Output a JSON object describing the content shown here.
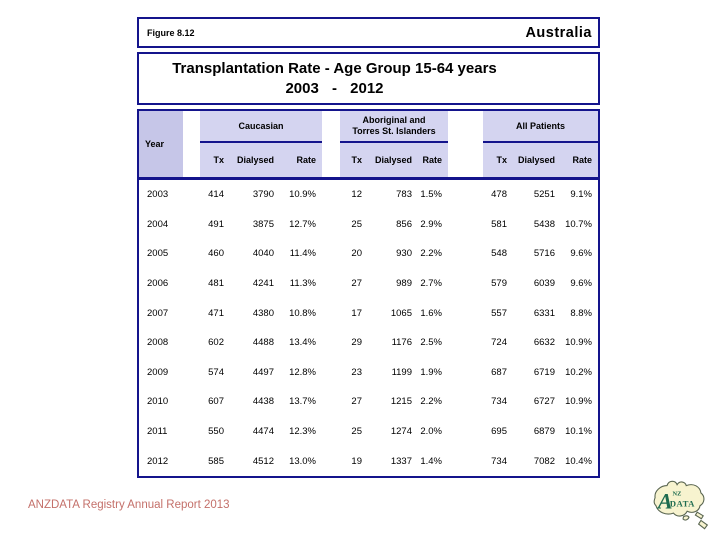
{
  "figure_bar": {
    "figure_label": "Figure 8.12",
    "country": "Australia"
  },
  "title": {
    "line1": "Transplantation Rate - Age Group 15-64 years",
    "line2": "2003 - 2012"
  },
  "table": {
    "year_header": "Year",
    "groups": [
      {
        "label": "Caucasian"
      },
      {
        "label": "Aboriginal and\nTorres St. Islanders"
      },
      {
        "label": "All Patients"
      }
    ],
    "sub_headers": [
      "Tx",
      "Dialysed",
      "Rate"
    ],
    "rows": [
      [
        "2003",
        "414",
        "3790",
        "10.9%",
        "12",
        "783",
        "1.5%",
        "478",
        "5251",
        "9.1%"
      ],
      [
        "2004",
        "491",
        "3875",
        "12.7%",
        "25",
        "856",
        "2.9%",
        "581",
        "5438",
        "10.7%"
      ],
      [
        "2005",
        "460",
        "4040",
        "11.4%",
        "20",
        "930",
        "2.2%",
        "548",
        "5716",
        "9.6%"
      ],
      [
        "2006",
        "481",
        "4241",
        "11.3%",
        "27",
        "989",
        "2.7%",
        "579",
        "6039",
        "9.6%"
      ],
      [
        "2007",
        "471",
        "4380",
        "10.8%",
        "17",
        "1065",
        "1.6%",
        "557",
        "6331",
        "8.8%"
      ],
      [
        "2008",
        "602",
        "4488",
        "13.4%",
        "29",
        "1176",
        "2.5%",
        "724",
        "6632",
        "10.9%"
      ],
      [
        "2009",
        "574",
        "4497",
        "12.8%",
        "23",
        "1199",
        "1.9%",
        "687",
        "6719",
        "10.2%"
      ],
      [
        "2010",
        "607",
        "4438",
        "13.7%",
        "27",
        "1215",
        "2.2%",
        "734",
        "6727",
        "10.9%"
      ],
      [
        "2011",
        "550",
        "4474",
        "12.3%",
        "25",
        "1274",
        "2.0%",
        "695",
        "6879",
        "10.1%"
      ],
      [
        "2012",
        "585",
        "4512",
        "13.0%",
        "19",
        "1337",
        "1.4%",
        "734",
        "7082",
        "10.4%"
      ]
    ]
  },
  "footer": {
    "text": "ANZDATA Registry Annual Report 2013"
  },
  "logo": {
    "big_letter": "A",
    "small_letters": "NZ",
    "word": "DATA"
  },
  "colors": {
    "border_navy": "#14148c",
    "header_fill": "#d4d4f0",
    "year_fill": "#c6c6e8",
    "footer_text": "#c4706a",
    "logo_fill": "#f7f3cf",
    "logo_green": "#1d6b4f"
  }
}
